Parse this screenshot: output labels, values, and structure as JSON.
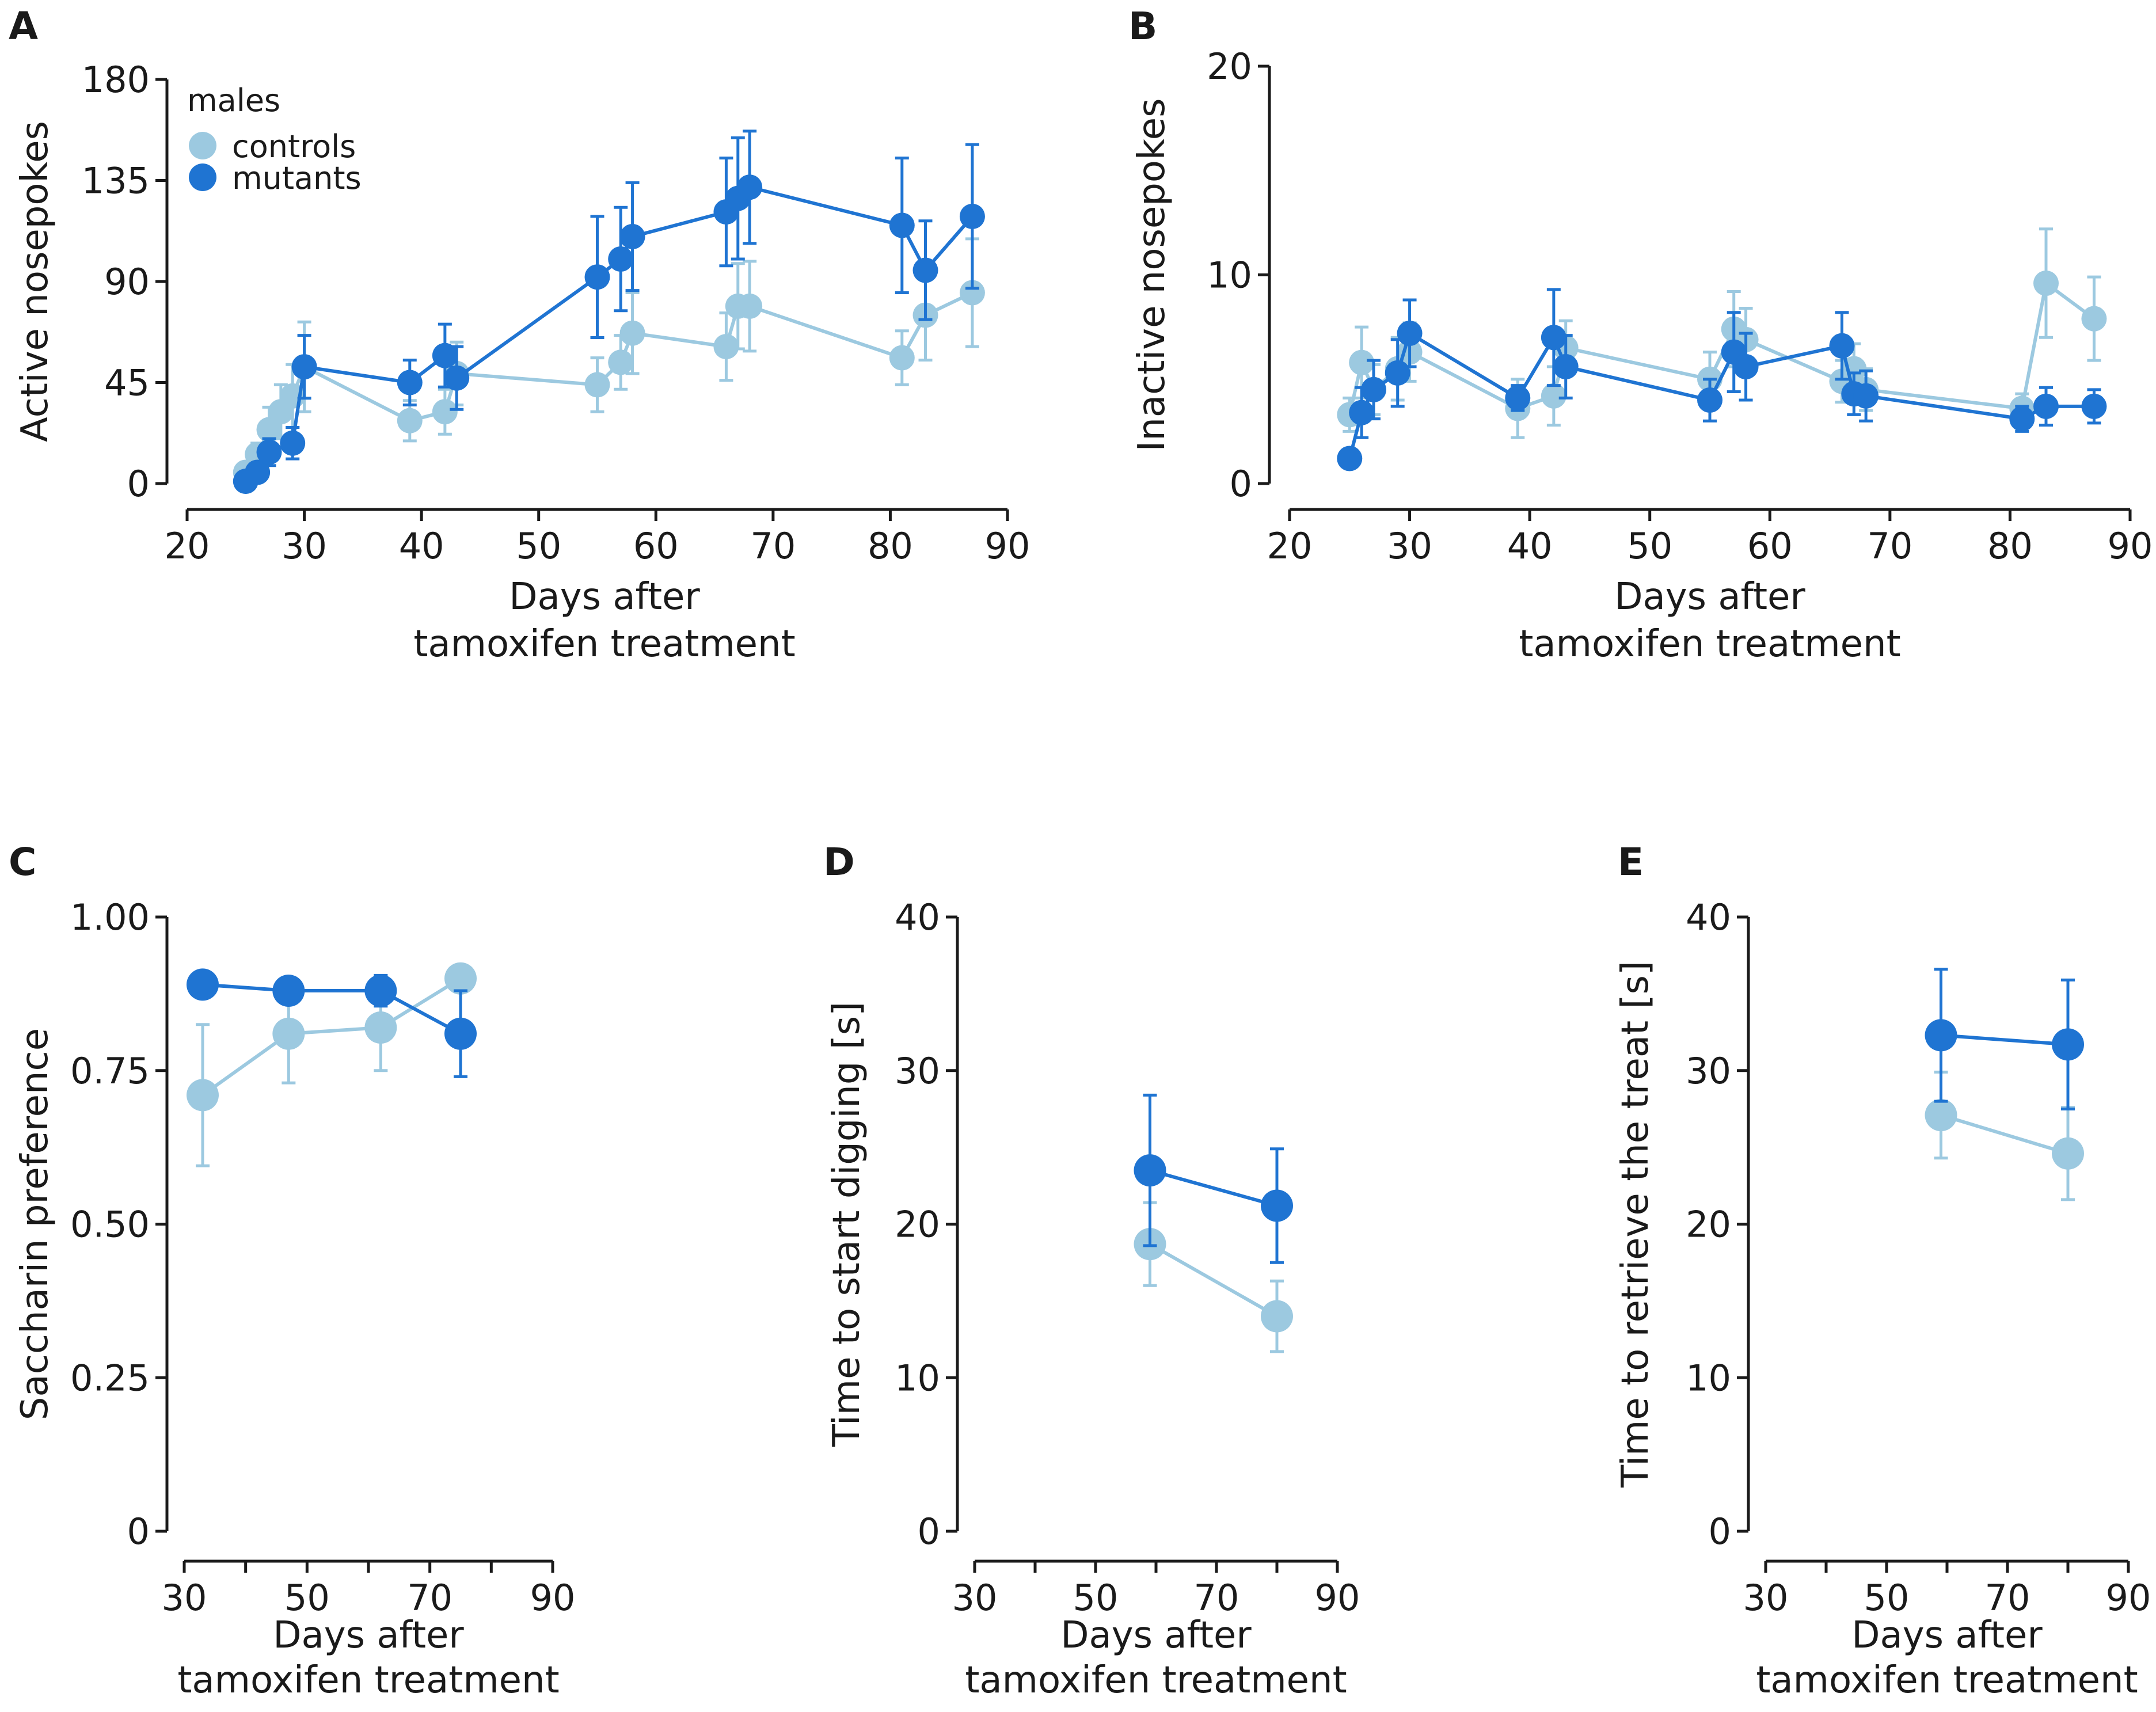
{
  "colors": {
    "controls": "#9cc9e0",
    "mutants": "#1f74d2",
    "axis": "#1a1a1a"
  },
  "legend": {
    "title": "males",
    "controls": "controls",
    "mutants": "mutants"
  },
  "chart_data": [
    {
      "id": "A",
      "type": "line",
      "panel_label": "A",
      "xlabel": [
        "Days after",
        "tamoxifen treatment"
      ],
      "ylabel": "Active nosepokes",
      "xlim": [
        20,
        90
      ],
      "ylim": [
        0,
        180
      ],
      "xticks": [
        20,
        30,
        40,
        50,
        60,
        70,
        80,
        90
      ],
      "xtick_labels": [
        "20",
        "30",
        "40",
        "50",
        "60",
        "70",
        "80",
        "90"
      ],
      "yticks": [
        0,
        45,
        90,
        135,
        180
      ],
      "ytick_labels": [
        "0",
        "45",
        "90",
        "135",
        "180"
      ],
      "legend_position": "top-left",
      "series": [
        {
          "name": "controls",
          "x": [
            25,
            26,
            27,
            28,
            29,
            30,
            39,
            42,
            43,
            55,
            57,
            58,
            66,
            67,
            68,
            81,
            83,
            87
          ],
          "y": [
            5,
            13,
            24,
            32,
            39,
            52,
            28,
            32,
            49,
            44,
            54,
            67,
            61,
            79,
            79,
            56,
            75,
            85
          ],
          "err": [
            3,
            5,
            10,
            12,
            14,
            20,
            9,
            10,
            14,
            12,
            12,
            18,
            15,
            19,
            20,
            12,
            20,
            24
          ]
        },
        {
          "name": "mutants",
          "x": [
            25,
            26,
            27,
            29,
            30,
            39,
            42,
            43,
            55,
            57,
            58,
            66,
            67,
            68,
            81,
            83,
            87
          ],
          "y": [
            1,
            5,
            14,
            18,
            52,
            45,
            57,
            47,
            92,
            100,
            110,
            121,
            127,
            132,
            115,
            95,
            119
          ],
          "err": [
            1,
            3,
            6,
            7,
            14,
            10,
            14,
            14,
            27,
            23,
            24,
            24,
            27,
            25,
            30,
            22,
            32
          ]
        }
      ]
    },
    {
      "id": "B",
      "type": "line",
      "panel_label": "B",
      "xlabel": [
        "Days after",
        "tamoxifen treatment"
      ],
      "ylabel": "Inactive nosepokes",
      "xlim": [
        20,
        90
      ],
      "ylim": [
        0,
        20
      ],
      "xticks": [
        20,
        30,
        40,
        50,
        60,
        70,
        80,
        90
      ],
      "xtick_labels": [
        "20",
        "30",
        "40",
        "50",
        "60",
        "70",
        "80",
        "90"
      ],
      "yticks": [
        0,
        10,
        20
      ],
      "ytick_labels": [
        "0",
        "10",
        "20"
      ],
      "series": [
        {
          "name": "controls",
          "x": [
            25,
            26,
            27,
            29,
            30,
            39,
            42,
            43,
            55,
            57,
            58,
            66,
            67,
            68,
            81,
            83,
            87
          ],
          "y": [
            3.3,
            5.8,
            4.5,
            5.5,
            6.3,
            3.6,
            4.2,
            6.5,
            5.0,
            7.4,
            6.9,
            4.9,
            5.5,
            4.5,
            3.6,
            9.6,
            7.9
          ],
          "err": [
            0.8,
            1.7,
            1.2,
            1.5,
            1.4,
            1.4,
            1.4,
            1.3,
            1.3,
            1.8,
            1.5,
            1.0,
            1.2,
            1.0,
            0.7,
            2.6,
            2.0
          ]
        },
        {
          "name": "mutants",
          "x": [
            25,
            26,
            27,
            29,
            30,
            39,
            42,
            43,
            55,
            57,
            58,
            66,
            67,
            68,
            81,
            83,
            87
          ],
          "y": [
            1.2,
            3.4,
            4.5,
            5.3,
            7.2,
            4.1,
            7.0,
            5.6,
            4.0,
            6.3,
            5.6,
            6.6,
            4.3,
            4.2,
            3.1,
            3.7,
            3.7
          ],
          "err": [
            0.3,
            1.2,
            1.4,
            1.6,
            1.6,
            0.6,
            2.3,
            1.5,
            1.0,
            1.9,
            1.6,
            1.6,
            1.0,
            1.2,
            0.6,
            0.9,
            0.8
          ]
        }
      ]
    },
    {
      "id": "C",
      "type": "line",
      "panel_label": "C",
      "xlabel": [
        "Days after",
        "tamoxifen treatment"
      ],
      "ylabel": "Saccharin preference",
      "xlim": [
        30,
        90
      ],
      "ylim": [
        0,
        1
      ],
      "xticks": [
        30,
        40,
        50,
        60,
        70,
        80,
        90
      ],
      "xtick_labels": [
        "30",
        "",
        "50",
        "",
        "70",
        "",
        "90"
      ],
      "yticks": [
        0,
        0.25,
        0.5,
        0.75,
        1.0
      ],
      "ytick_labels": [
        "0",
        "0.25",
        "0.50",
        "0.75",
        "1.00"
      ],
      "series": [
        {
          "name": "controls",
          "x": [
            33,
            47,
            62,
            75
          ],
          "y": [
            0.71,
            0.81,
            0.82,
            0.9
          ],
          "err": [
            0.115,
            0.08,
            0.07,
            0.015
          ]
        },
        {
          "name": "mutants",
          "x": [
            33,
            47,
            62,
            75
          ],
          "y": [
            0.89,
            0.88,
            0.88,
            0.81
          ],
          "err": [
            0.01,
            0.02,
            0.025,
            0.07
          ]
        }
      ]
    },
    {
      "id": "D",
      "type": "line",
      "panel_label": "D",
      "xlabel": [
        "Days after",
        "tamoxifen treatment"
      ],
      "ylabel": "Time to start digging [s]",
      "xlim": [
        30,
        90
      ],
      "ylim": [
        0,
        40
      ],
      "xticks": [
        30,
        40,
        50,
        60,
        70,
        80,
        90
      ],
      "xtick_labels": [
        "30",
        "",
        "50",
        "",
        "70",
        "",
        "90"
      ],
      "yticks": [
        0,
        10,
        20,
        30,
        40
      ],
      "ytick_labels": [
        "0",
        "10",
        "20",
        "30",
        "40"
      ],
      "series": [
        {
          "name": "controls",
          "x": [
            59,
            80
          ],
          "y": [
            18.7,
            14.0
          ],
          "err": [
            2.7,
            2.3
          ]
        },
        {
          "name": "mutants",
          "x": [
            59,
            80
          ],
          "y": [
            23.5,
            21.2
          ],
          "err": [
            4.9,
            3.7
          ]
        }
      ]
    },
    {
      "id": "E",
      "type": "line",
      "panel_label": "E",
      "xlabel": [
        "Days after",
        "tamoxifen treatment"
      ],
      "ylabel": "Time to retrieve the treat [s]",
      "xlim": [
        30,
        90
      ],
      "ylim": [
        0,
        40
      ],
      "xticks": [
        30,
        40,
        50,
        60,
        70,
        80,
        90
      ],
      "xtick_labels": [
        "30",
        "",
        "50",
        "",
        "70",
        "",
        "90"
      ],
      "yticks": [
        0,
        10,
        20,
        30,
        40
      ],
      "ytick_labels": [
        "0",
        "10",
        "20",
        "30",
        "40"
      ],
      "series": [
        {
          "name": "controls",
          "x": [
            59,
            80
          ],
          "y": [
            27.1,
            24.6
          ],
          "err": [
            2.8,
            3.0
          ]
        },
        {
          "name": "mutants",
          "x": [
            59,
            80
          ],
          "y": [
            32.3,
            31.7
          ],
          "err": [
            4.3,
            4.2
          ]
        }
      ]
    }
  ]
}
